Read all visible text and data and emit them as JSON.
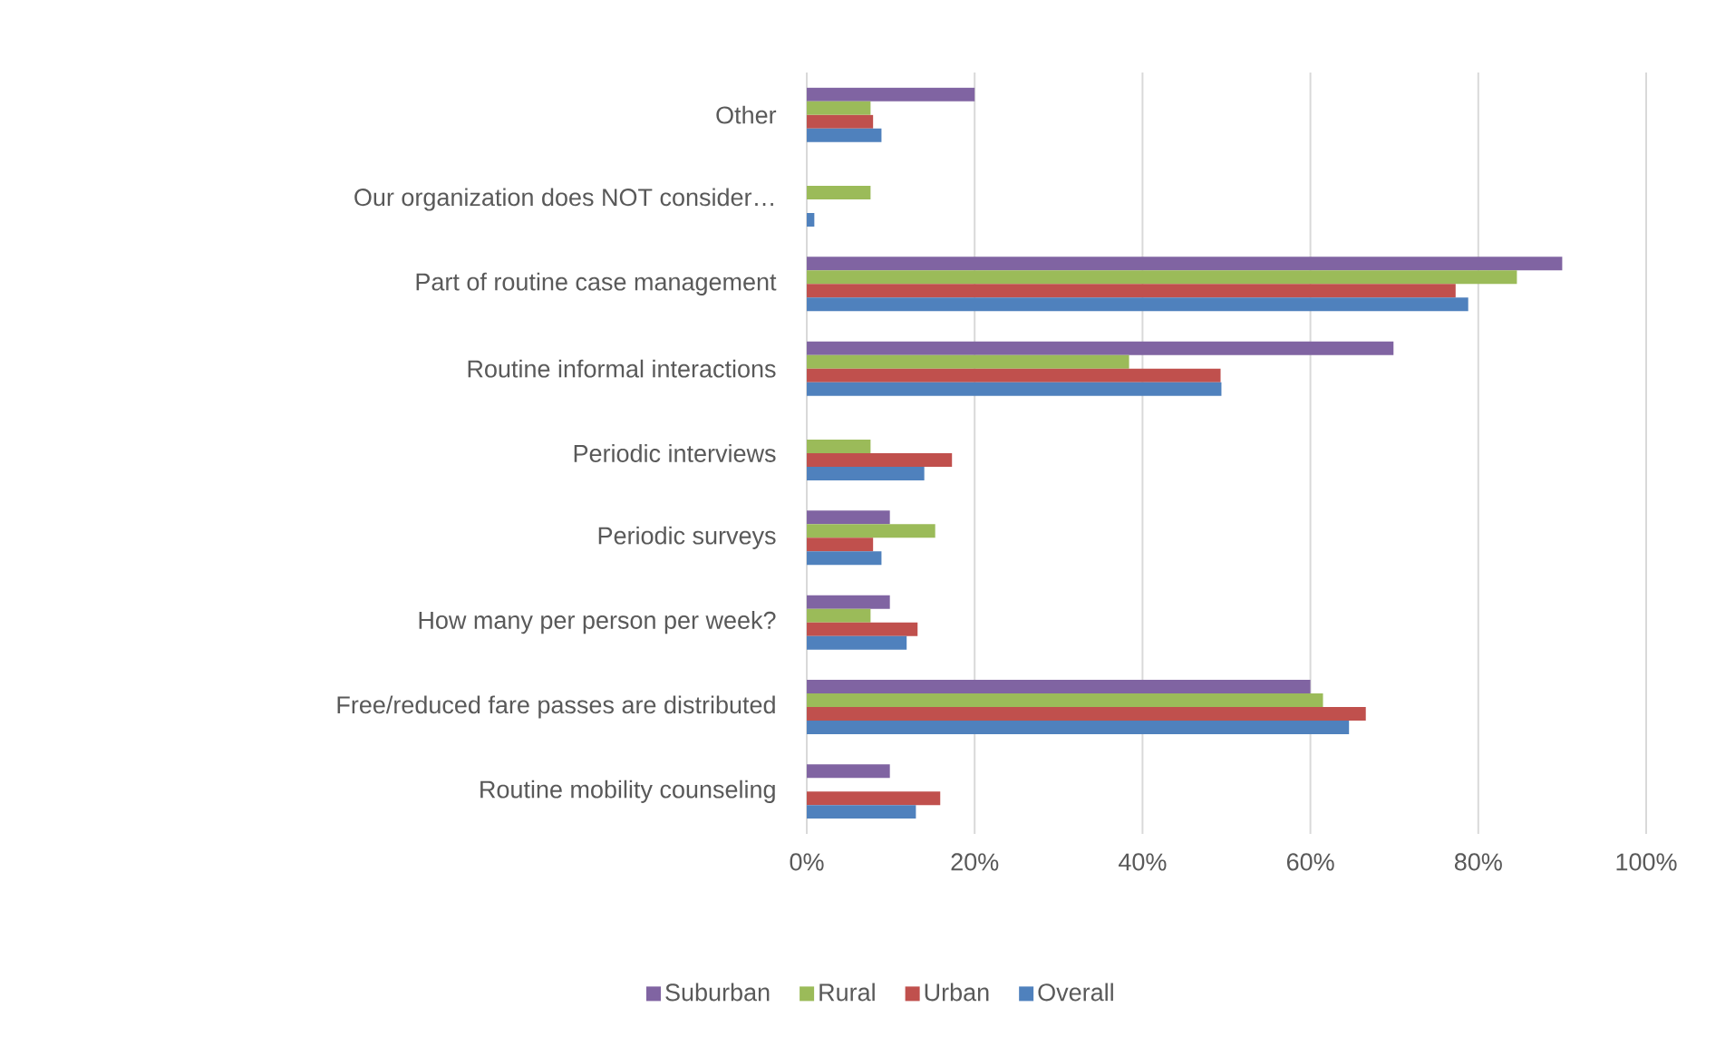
{
  "chart_data": {
    "type": "bar",
    "orientation": "horizontal",
    "categories": [
      "Other",
      "Our organization does NOT consider…",
      "Part of routine case management",
      "Routine informal interactions",
      "Periodic interviews",
      "Periodic surveys",
      "How many per person per week?",
      "Free/reduced fare passes are distributed",
      "Routine mobility counseling"
    ],
    "series": [
      {
        "name": "Suburban",
        "color": "#8064a2",
        "values": [
          20,
          0,
          90,
          69.9,
          0,
          9.9,
          9.9,
          60,
          9.9
        ]
      },
      {
        "name": "Rural",
        "color": "#9bbb59",
        "values": [
          7.6,
          7.6,
          84.6,
          38.4,
          7.6,
          15.3,
          7.6,
          61.5,
          0
        ]
      },
      {
        "name": "Urban",
        "color": "#c0504d",
        "values": [
          7.9,
          0,
          77.3,
          49.3,
          17.3,
          7.9,
          13.2,
          66.6,
          15.9
        ]
      },
      {
        "name": "Overall",
        "color": "#4f81bd",
        "values": [
          8.9,
          0.9,
          78.8,
          49.4,
          14,
          8.9,
          11.9,
          64.6,
          13
        ]
      }
    ],
    "xlim": [
      0,
      100
    ],
    "xticks": [
      {
        "value": 0,
        "label": "0%"
      },
      {
        "value": 20,
        "label": "20%"
      },
      {
        "value": 40,
        "label": "40%"
      },
      {
        "value": 60,
        "label": "60%"
      },
      {
        "value": 80,
        "label": "80%"
      },
      {
        "value": 100,
        "label": "100%"
      }
    ],
    "grid": "x",
    "legend": "bottom"
  }
}
